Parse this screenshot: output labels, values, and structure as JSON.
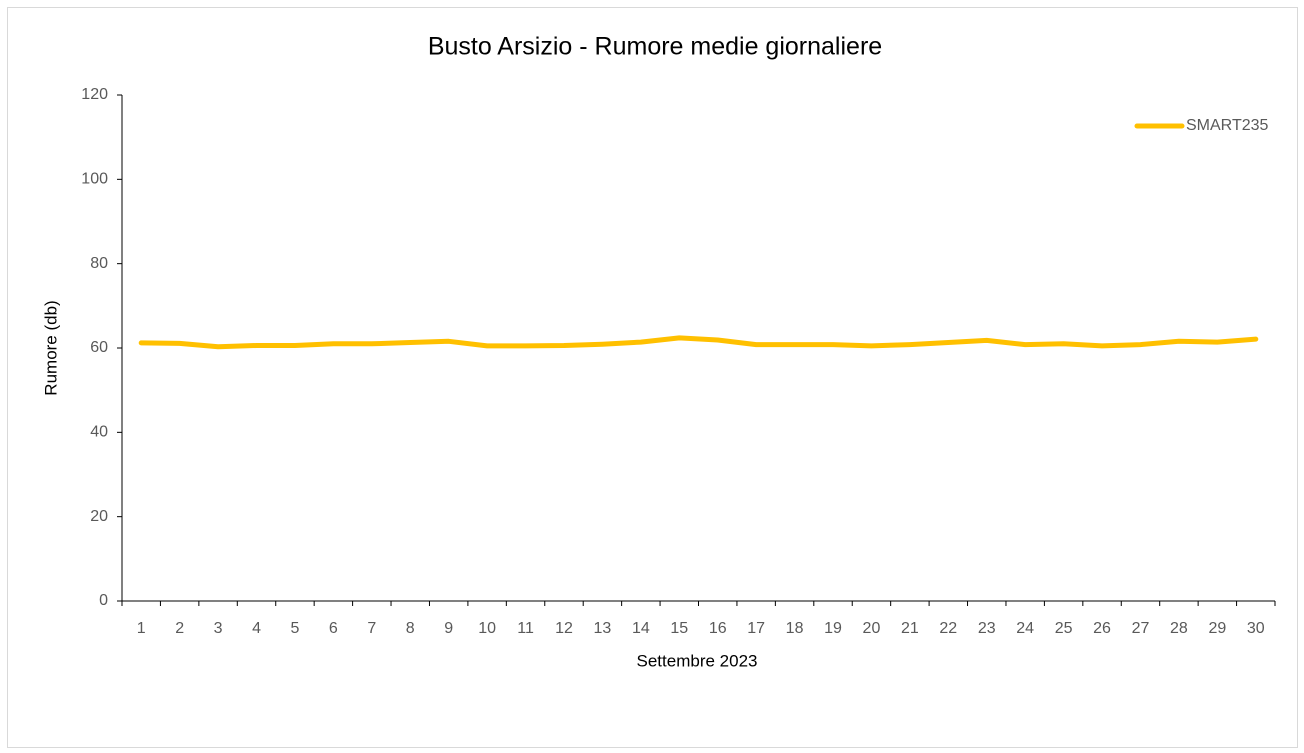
{
  "chart_data": {
    "type": "line",
    "title": "Busto Arsizio - Rumore medie giornaliere",
    "x_label": "Settembre 2023",
    "y_label": "Rumore (db)",
    "categories": [
      "1",
      "2",
      "3",
      "4",
      "5",
      "6",
      "7",
      "8",
      "9",
      "10",
      "11",
      "12",
      "13",
      "14",
      "15",
      "16",
      "17",
      "18",
      "19",
      "20",
      "21",
      "22",
      "23",
      "24",
      "25",
      "26",
      "27",
      "28",
      "29",
      "30"
    ],
    "series": [
      {
        "name": "SMART235",
        "color": "#ffc000",
        "values": [
          61.2,
          61.1,
          60.3,
          60.6,
          60.6,
          61.0,
          61.0,
          61.3,
          61.6,
          60.5,
          60.5,
          60.6,
          60.9,
          61.4,
          62.4,
          61.9,
          60.8,
          60.8,
          60.8,
          60.5,
          60.8,
          61.3,
          61.8,
          60.8,
          61.0,
          60.5,
          60.8,
          61.6,
          61.4,
          62.1
        ]
      }
    ],
    "ylim": [
      0,
      120
    ],
    "yticks": [
      0,
      20,
      40,
      60,
      80,
      100,
      120
    ],
    "grid": false,
    "legend": "top-right"
  }
}
